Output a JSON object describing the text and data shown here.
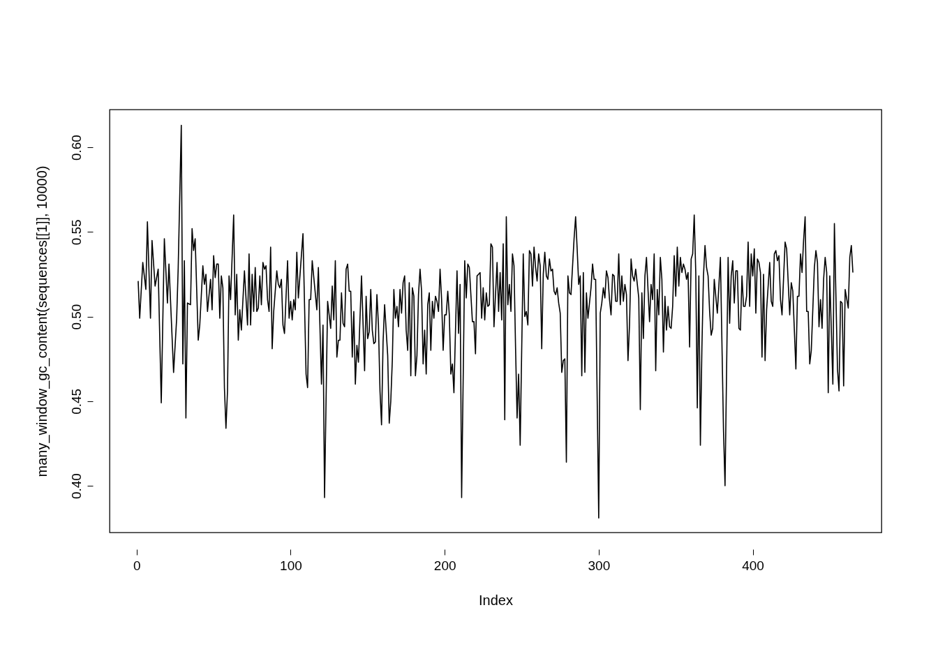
{
  "chart_data": {
    "type": "line",
    "xlabel": "Index",
    "ylabel": "many_window_gc_content(sequences[[1]], 10000)",
    "xlim": [
      -17.56,
      483.56
    ],
    "ylim": [
      0.3724,
      0.6223
    ],
    "xticks": [
      0,
      100,
      200,
      300,
      400
    ],
    "yticks": [
      {
        "value": 0.4,
        "label": "0.40"
      },
      0.45,
      {
        "value": 0.5,
        "label": "0.50"
      },
      0.55,
      {
        "value": 0.6,
        "label": "0.60"
      }
    ],
    "grid": false,
    "legend": false,
    "marker": "none",
    "line_style": "solid",
    "series": [
      {
        "color": "#000000",
        "x": [
          1,
          2,
          4,
          6,
          7,
          9,
          10,
          12,
          14,
          16,
          18,
          20,
          21,
          24,
          26,
          27,
          29,
          30,
          31,
          32,
          33,
          35,
          36,
          37,
          38,
          40,
          41,
          43,
          44,
          45,
          46,
          48,
          49,
          50,
          51,
          52,
          53,
          54,
          55,
          56,
          57,
          58,
          59,
          60,
          61,
          63,
          64,
          65,
          66,
          67,
          68,
          70,
          72,
          73,
          74,
          75,
          76,
          77,
          78,
          79,
          80,
          81,
          82,
          83,
          84,
          85,
          86,
          87,
          88,
          89,
          91,
          92,
          93,
          94,
          95,
          96,
          98,
          99,
          100,
          101,
          102,
          103,
          104,
          105,
          108,
          110,
          111,
          112,
          113,
          114,
          117,
          118,
          120,
          121,
          122,
          124,
          126,
          127,
          128,
          129,
          130,
          131,
          132,
          133,
          134,
          135,
          136,
          137,
          138,
          139,
          140,
          141,
          142,
          143,
          144,
          146,
          148,
          149,
          150,
          151,
          152,
          153,
          154,
          155,
          156,
          157,
          158,
          159,
          160,
          161,
          163,
          164,
          165,
          166,
          167,
          168,
          169,
          170,
          171,
          172,
          173,
          174,
          175,
          176,
          177,
          178,
          179,
          180,
          181,
          182,
          183,
          184,
          185,
          186,
          187,
          188,
          189,
          190,
          191,
          192,
          193,
          194,
          195,
          196,
          197,
          198,
          199,
          200,
          201,
          202,
          203,
          204,
          205,
          206,
          208,
          209,
          210,
          211,
          213,
          214,
          215,
          216,
          218,
          219,
          220,
          221,
          222,
          223,
          224,
          225,
          226,
          227,
          228,
          229,
          230,
          231,
          232,
          234,
          235,
          236,
          237,
          238,
          239,
          240,
          241,
          242,
          243,
          244,
          245,
          246,
          247,
          248,
          249,
          251,
          252,
          253,
          254,
          255,
          256,
          257,
          258,
          259,
          260,
          261,
          262,
          263,
          264,
          265,
          266,
          267,
          268,
          269,
          270,
          271,
          272,
          273,
          274,
          275,
          276,
          277,
          278,
          279,
          280,
          281,
          282,
          284,
          285,
          286,
          287,
          288,
          289,
          290,
          291,
          292,
          293,
          295,
          296,
          297,
          298,
          300,
          301,
          302,
          303,
          304,
          305,
          306,
          307,
          308,
          309,
          310,
          311,
          312,
          313,
          314,
          315,
          316,
          317,
          318,
          319,
          320,
          321,
          322,
          323,
          324,
          326,
          327,
          328,
          329,
          330,
          331,
          333,
          334,
          335,
          336,
          337,
          338,
          339,
          340,
          341,
          342,
          343,
          344,
          345,
          346,
          347,
          348,
          349,
          350,
          351,
          352,
          353,
          354,
          355,
          356,
          357,
          358,
          359,
          360,
          361,
          362,
          363,
          364,
          365,
          366,
          367,
          368,
          369,
          370,
          371,
          372,
          373,
          374,
          375,
          376,
          377,
          378,
          379,
          381,
          382,
          384,
          385,
          386,
          387,
          388,
          389,
          390,
          391,
          392,
          393,
          394,
          395,
          396,
          397,
          398,
          399,
          400,
          401,
          402,
          403,
          404,
          405,
          406,
          407,
          408,
          409,
          411,
          412,
          413,
          414,
          415,
          416,
          417,
          418,
          419,
          421,
          422,
          424,
          425,
          426,
          428,
          429,
          430,
          431,
          432,
          433,
          434,
          435,
          436,
          437,
          438,
          440,
          441,
          442,
          443,
          444,
          445,
          446,
          447,
          448,
          449,
          450,
          452,
          453,
          455,
          456,
          457,
          458,
          459,
          460,
          462,
          463,
          464,
          465
        ],
        "values": [
          0.521,
          0.499,
          0.532,
          0.516,
          0.556,
          0.499,
          0.545,
          0.518,
          0.528,
          0.449,
          0.546,
          0.508,
          0.531,
          0.467,
          0.499,
          0.529,
          0.613,
          0.472,
          0.533,
          0.44,
          0.508,
          0.507,
          0.552,
          0.539,
          0.546,
          0.486,
          0.495,
          0.53,
          0.519,
          0.525,
          0.503,
          0.522,
          0.504,
          0.536,
          0.523,
          0.531,
          0.531,
          0.499,
          0.524,
          0.517,
          0.458,
          0.434,
          0.456,
          0.524,
          0.51,
          0.56,
          0.501,
          0.525,
          0.486,
          0.504,
          0.492,
          0.527,
          0.495,
          0.537,
          0.495,
          0.525,
          0.503,
          0.529,
          0.503,
          0.505,
          0.524,
          0.507,
          0.532,
          0.528,
          0.53,
          0.51,
          0.503,
          0.541,
          0.481,
          0.503,
          0.527,
          0.519,
          0.517,
          0.522,
          0.495,
          0.49,
          0.533,
          0.499,
          0.509,
          0.498,
          0.51,
          0.504,
          0.538,
          0.511,
          0.549,
          0.466,
          0.458,
          0.51,
          0.51,
          0.533,
          0.504,
          0.529,
          0.46,
          0.495,
          0.393,
          0.509,
          0.493,
          0.518,
          0.498,
          0.533,
          0.476,
          0.486,
          0.486,
          0.514,
          0.496,
          0.494,
          0.528,
          0.531,
          0.515,
          0.515,
          0.476,
          0.503,
          0.46,
          0.483,
          0.473,
          0.524,
          0.468,
          0.512,
          0.487,
          0.491,
          0.516,
          0.492,
          0.484,
          0.485,
          0.513,
          0.495,
          0.456,
          0.436,
          0.485,
          0.507,
          0.477,
          0.437,
          0.45,
          0.474,
          0.516,
          0.499,
          0.506,
          0.494,
          0.516,
          0.502,
          0.52,
          0.524,
          0.492,
          0.48,
          0.52,
          0.465,
          0.517,
          0.512,
          0.465,
          0.477,
          0.513,
          0.528,
          0.515,
          0.472,
          0.492,
          0.466,
          0.507,
          0.514,
          0.48,
          0.509,
          0.499,
          0.512,
          0.509,
          0.503,
          0.528,
          0.51,
          0.48,
          0.501,
          0.501,
          0.515,
          0.501,
          0.466,
          0.472,
          0.455,
          0.527,
          0.49,
          0.519,
          0.393,
          0.533,
          0.511,
          0.531,
          0.529,
          0.497,
          0.497,
          0.478,
          0.524,
          0.525,
          0.526,
          0.499,
          0.517,
          0.498,
          0.514,
          0.506,
          0.507,
          0.543,
          0.541,
          0.494,
          0.532,
          0.503,
          0.526,
          0.498,
          0.543,
          0.439,
          0.559,
          0.507,
          0.519,
          0.503,
          0.537,
          0.53,
          0.482,
          0.44,
          0.466,
          0.424,
          0.537,
          0.5,
          0.503,
          0.495,
          0.539,
          0.537,
          0.518,
          0.541,
          0.529,
          0.521,
          0.537,
          0.53,
          0.481,
          0.525,
          0.538,
          0.524,
          0.522,
          0.534,
          0.527,
          0.528,
          0.515,
          0.513,
          0.517,
          0.508,
          0.502,
          0.467,
          0.474,
          0.475,
          0.414,
          0.524,
          0.514,
          0.513,
          0.546,
          0.559,
          0.54,
          0.519,
          0.524,
          0.465,
          0.526,
          0.467,
          0.514,
          0.499,
          0.517,
          0.531,
          0.522,
          0.522,
          0.381,
          0.502,
          0.508,
          0.517,
          0.511,
          0.527,
          0.523,
          0.51,
          0.501,
          0.525,
          0.524,
          0.509,
          0.509,
          0.537,
          0.507,
          0.524,
          0.509,
          0.519,
          0.513,
          0.474,
          0.495,
          0.534,
          0.524,
          0.521,
          0.528,
          0.511,
          0.445,
          0.514,
          0.487,
          0.524,
          0.535,
          0.497,
          0.519,
          0.51,
          0.537,
          0.468,
          0.516,
          0.501,
          0.535,
          0.522,
          0.479,
          0.512,
          0.492,
          0.506,
          0.494,
          0.493,
          0.506,
          0.536,
          0.512,
          0.541,
          0.518,
          0.535,
          0.526,
          0.531,
          0.528,
          0.522,
          0.526,
          0.482,
          0.534,
          0.537,
          0.56,
          0.526,
          0.446,
          0.524,
          0.424,
          0.482,
          0.524,
          0.542,
          0.529,
          0.524,
          0.503,
          0.489,
          0.493,
          0.522,
          0.512,
          0.502,
          0.518,
          0.535,
          0.433,
          0.4,
          0.535,
          0.496,
          0.524,
          0.533,
          0.508,
          0.527,
          0.527,
          0.493,
          0.492,
          0.524,
          0.506,
          0.506,
          0.512,
          0.544,
          0.506,
          0.537,
          0.524,
          0.54,
          0.502,
          0.534,
          0.532,
          0.526,
          0.476,
          0.525,
          0.474,
          0.504,
          0.532,
          0.509,
          0.506,
          0.537,
          0.539,
          0.533,
          0.536,
          0.51,
          0.501,
          0.544,
          0.54,
          0.501,
          0.52,
          0.515,
          0.469,
          0.512,
          0.512,
          0.537,
          0.526,
          0.545,
          0.559,
          0.503,
          0.503,
          0.472,
          0.48,
          0.529,
          0.539,
          0.532,
          0.494,
          0.51,
          0.493,
          0.522,
          0.535,
          0.526,
          0.455,
          0.524,
          0.46,
          0.555,
          0.469,
          0.456,
          0.509,
          0.508,
          0.459,
          0.516,
          0.505,
          0.535,
          0.542,
          0.526
        ]
      }
    ]
  }
}
